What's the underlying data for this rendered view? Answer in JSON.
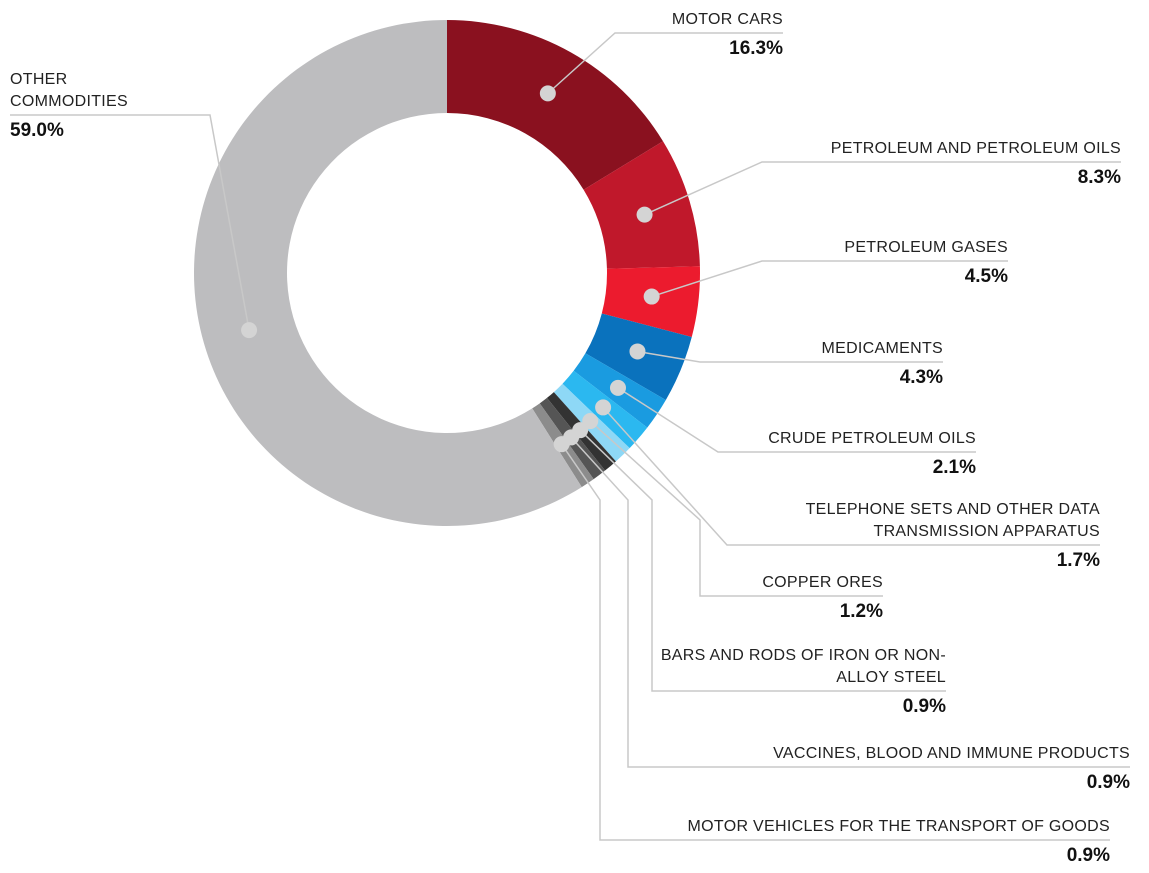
{
  "chart_data": {
    "type": "donut",
    "categories": [
      "MOTOR CARS",
      "PETROLEUM AND PETROLEUM OILS",
      "PETROLEUM GASES",
      "MEDICAMENTS",
      "CRUDE PETROLEUM OILS",
      "TELEPHONE SETS AND OTHER DATA TRANSMISSION APPARATUS",
      "COPPER ORES",
      "BARS AND RODS OF IRON OR NON-ALLOY STEEL",
      "VACCINES, BLOOD AND IMMUNE PRODUCTS",
      "MOTOR VEHICLES FOR THE TRANSPORT OF GOODS",
      "OTHER COMMODITIES"
    ],
    "values": [
      16.3,
      8.3,
      4.5,
      4.3,
      2.1,
      1.7,
      1.2,
      0.9,
      0.9,
      0.9,
      59.0
    ],
    "value_labels": [
      "16.3%",
      "8.3%",
      "4.5%",
      "4.3%",
      "2.1%",
      "1.7%",
      "1.2%",
      "0.9%",
      "0.9%",
      "0.9%",
      "59.0%"
    ],
    "colors": [
      "#8a111f",
      "#c0182b",
      "#ec1b2e",
      "#0a72bd",
      "#1a9be0",
      "#2bb8f0",
      "#8ed8f6",
      "#333333",
      "#555555",
      "#8c8c8c",
      "#bdbdbf"
    ]
  }
}
